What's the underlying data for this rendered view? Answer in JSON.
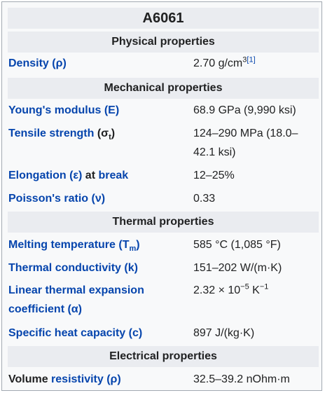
{
  "title": "A6061",
  "sections": {
    "physical": "Physical properties",
    "mechanical": "Mechanical properties",
    "thermal": "Thermal properties",
    "electrical": "Electrical properties"
  },
  "rows": {
    "density": {
      "label": "Density (ρ)",
      "value": "2.70 g/cm",
      "sup": "3",
      "ref": "[1]"
    },
    "youngs": {
      "label": "Young's modulus (E)",
      "value": "68.9 GPa (9,990 ksi)"
    },
    "tensile": {
      "label": "Tensile strength",
      "symbol_open": " (σ",
      "symbol_sub": "t",
      "symbol_close": ")",
      "value": "124–290 MPa (18.0–42.1 ksi)"
    },
    "elongation": {
      "label_link1": "Elongation (ε)",
      "label_mid": " at ",
      "label_link2": "break",
      "value": "12–25%"
    },
    "poisson": {
      "label": "Poisson's ratio (ν)",
      "value": "0.33"
    },
    "melting": {
      "label": "Melting temperature (T",
      "sub": "m",
      "close": ")",
      "value": "585 °C (1,085 °F)"
    },
    "conductivity": {
      "label": "Thermal conductivity (k)",
      "value": "151–202 W/(m·K)"
    },
    "expansion": {
      "label": "Linear thermal expansion coefficient (α)",
      "value_pre": "2.32 × 10",
      "sup1": "−5",
      "value_mid": " K",
      "sup2": "−1"
    },
    "heat": {
      "label": "Specific heat capacity (c)",
      "value": "897 J/(kg·K)"
    },
    "resistivity": {
      "label_plain": "Volume ",
      "label_link": "resistivity (ρ)",
      "value": "32.5–39.2 nOhm·m"
    }
  }
}
